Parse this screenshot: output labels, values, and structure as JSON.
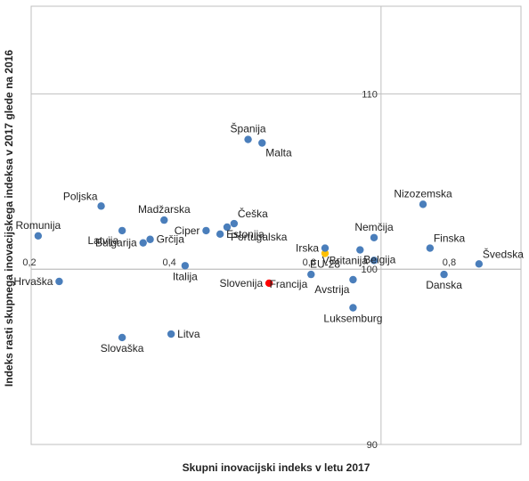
{
  "chart_data": {
    "type": "scatter",
    "xlabel": "Skupni inovacijski indeks v letu 2017",
    "ylabel": "Indeks rasti skupnega inovacijskega indeksa v 2017 glede na 2016",
    "xlim": [
      0.2,
      0.9
    ],
    "ylim": [
      90,
      115
    ],
    "x_ticks": [
      {
        "value": 0.2,
        "label": "0,2"
      },
      {
        "value": 0.4,
        "label": "0,4"
      },
      {
        "value": 0.6,
        "label": "0,6"
      },
      {
        "value": 0.8,
        "label": "0,8"
      }
    ],
    "y_ticks": [
      {
        "value": 90,
        "label": "90"
      },
      {
        "value": 100,
        "label": "100"
      },
      {
        "value": 110,
        "label": "110"
      }
    ],
    "grid": "y",
    "axis_cross": {
      "x": 0.7,
      "y": 100
    },
    "colors": {
      "default": "#4a7ebb",
      "eu": "#ffc000",
      "highlight": "#ff0000",
      "grid": "#bfbfbf"
    },
    "points": [
      {
        "name": "Romunija",
        "x": 0.21,
        "y": 101.9,
        "color": "default",
        "label_pos": "above"
      },
      {
        "name": "Bulgarija",
        "x": 0.36,
        "y": 101.5,
        "color": "default",
        "label_pos": "left"
      },
      {
        "name": "Poljska",
        "x": 0.3,
        "y": 103.6,
        "color": "default",
        "label_pos": "above-left"
      },
      {
        "name": "Latvija",
        "x": 0.33,
        "y": 102.2,
        "color": "default",
        "label_pos": "below-left"
      },
      {
        "name": "Madžarska",
        "x": 0.39,
        "y": 102.8,
        "color": "default",
        "label_pos": "above"
      },
      {
        "name": "Grčija",
        "x": 0.37,
        "y": 101.7,
        "color": "default",
        "label_pos": "right"
      },
      {
        "name": "Hrvaška",
        "x": 0.24,
        "y": 99.3,
        "color": "default",
        "label_pos": "left"
      },
      {
        "name": "Italija",
        "x": 0.42,
        "y": 100.2,
        "color": "default",
        "label_pos": "below"
      },
      {
        "name": "Ciper",
        "x": 0.45,
        "y": 102.2,
        "color": "default",
        "label_pos": "left"
      },
      {
        "name": "Češka",
        "x": 0.49,
        "y": 102.6,
        "color": "default",
        "label_pos": "above-right"
      },
      {
        "name": "Portugalska",
        "x": 0.48,
        "y": 102.4,
        "color": "default",
        "label_pos": "below-right"
      },
      {
        "name": "Estonija",
        "x": 0.47,
        "y": 102.0,
        "color": "default",
        "label_pos": "right"
      },
      {
        "name": "Španija",
        "x": 0.51,
        "y": 107.4,
        "color": "default",
        "label_pos": "above"
      },
      {
        "name": "Malta",
        "x": 0.53,
        "y": 107.2,
        "color": "default",
        "label_pos": "below-right"
      },
      {
        "name": "Litva",
        "x": 0.4,
        "y": 96.3,
        "color": "default",
        "label_pos": "right"
      },
      {
        "name": "Slovaška",
        "x": 0.33,
        "y": 96.1,
        "color": "default",
        "label_pos": "below"
      },
      {
        "name": "Slovenija",
        "x": 0.54,
        "y": 99.2,
        "color": "highlight",
        "label_pos": "left"
      },
      {
        "name": "EU-28",
        "x": 0.62,
        "y": 100.9,
        "color": "eu",
        "label_pos": "below"
      },
      {
        "name": "Francija",
        "x": 0.6,
        "y": 99.7,
        "color": "default",
        "label_pos": "below-left"
      },
      {
        "name": "Avstrija",
        "x": 0.66,
        "y": 99.4,
        "color": "default",
        "label_pos": "below-left"
      },
      {
        "name": "Irska",
        "x": 0.62,
        "y": 101.2,
        "color": "default",
        "label_pos": "left"
      },
      {
        "name": "Nemčija",
        "x": 0.69,
        "y": 101.8,
        "color": "default",
        "label_pos": "above"
      },
      {
        "name": "Belgija",
        "x": 0.67,
        "y": 101.1,
        "color": "default",
        "label_pos": "below-right"
      },
      {
        "name": "VBritanija",
        "x": 0.69,
        "y": 100.5,
        "color": "default",
        "label_pos": "left"
      },
      {
        "name": "Nizozemska",
        "x": 0.76,
        "y": 103.7,
        "color": "default",
        "label_pos": "above"
      },
      {
        "name": "Finska",
        "x": 0.77,
        "y": 101.2,
        "color": "default",
        "label_pos": "above-right"
      },
      {
        "name": "Danska",
        "x": 0.79,
        "y": 99.7,
        "color": "default",
        "label_pos": "below"
      },
      {
        "name": "Švedska",
        "x": 0.84,
        "y": 100.3,
        "color": "default",
        "label_pos": "above-right"
      },
      {
        "name": "Luksemburg",
        "x": 0.66,
        "y": 97.8,
        "color": "default",
        "label_pos": "below"
      }
    ]
  }
}
